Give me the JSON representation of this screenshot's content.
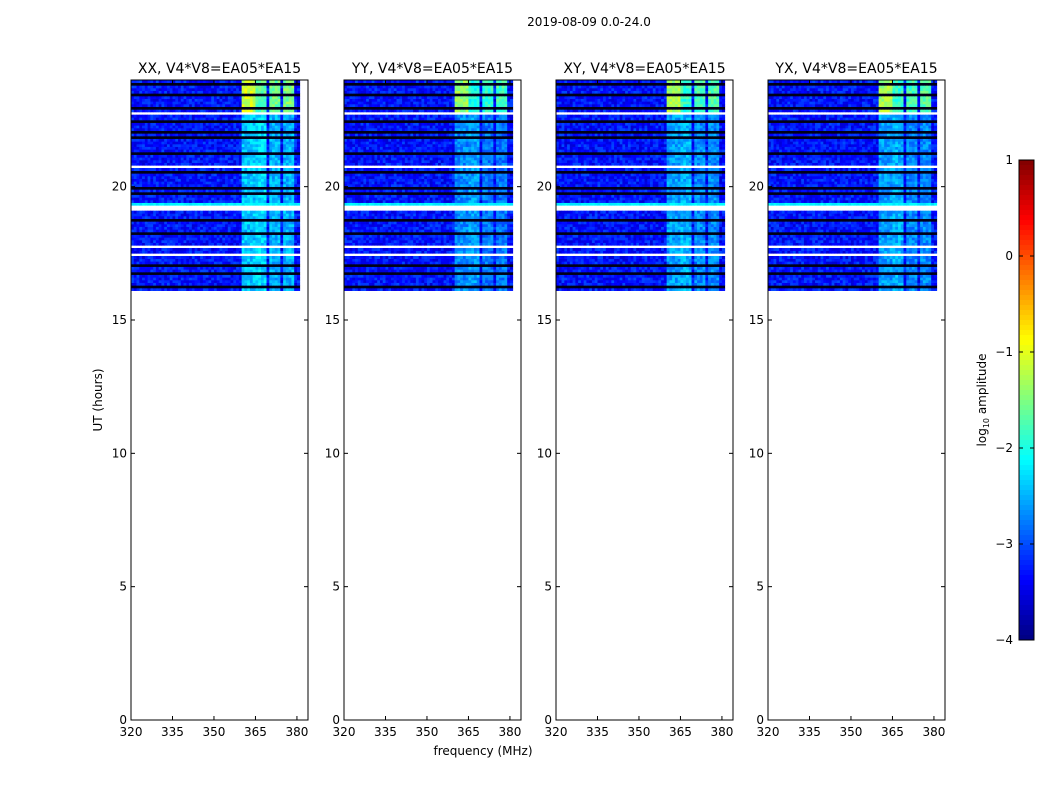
{
  "chart_data": {
    "type": "heatmap",
    "title": "2019-08-09 0.0-24.0",
    "xlabel": "frequency (MHz)",
    "ylabel": "UT (hours)",
    "xlim": [
      320,
      384
    ],
    "ylim": [
      0,
      24
    ],
    "xticks": [
      320,
      335,
      350,
      365,
      380
    ],
    "yticks": [
      0,
      5,
      10,
      15,
      20
    ],
    "data_time_range": [
      16,
      24
    ],
    "colormap": "jet",
    "colorbar": {
      "label_main": "log",
      "label_sub": "10",
      "label_rest": " amplitude",
      "range": [
        -4,
        1
      ],
      "ticks": [
        1,
        0,
        -1,
        -2,
        -3,
        -4
      ],
      "tick_labels": [
        "1",
        "0",
        "−1",
        "−2",
        "−3",
        "−4"
      ]
    },
    "background_level": -3.3,
    "bright_bands": [
      {
        "fmin": 360,
        "fmax": 364.5,
        "upper_level": -1.1,
        "lower_level": -2.4
      },
      {
        "fmin": 365,
        "fmax": 369,
        "upper_level": -1.7,
        "lower_level": -2.3
      },
      {
        "fmin": 370,
        "fmax": 374,
        "upper_level": -1.6,
        "lower_level": -2.5
      },
      {
        "fmin": 375,
        "fmax": 379,
        "upper_level": -1.5,
        "lower_level": -2.5
      }
    ],
    "upper_segment_start_hour": 22.8,
    "flagged_time_ranges": [
      [
        22.75,
        22.85
      ],
      [
        20.7,
        20.85
      ],
      [
        19.1,
        19.3
      ],
      [
        17.7,
        17.85
      ],
      [
        17.4,
        17.5
      ],
      [
        17.2,
        17.25
      ],
      [
        16.05,
        16.15
      ]
    ],
    "cyan_time_ranges": [
      [
        19.32,
        19.45
      ],
      [
        15.95,
        16.05
      ]
    ],
    "dark_lines": [
      23.9,
      23.5,
      23.0,
      22.45,
      22.1,
      21.85,
      21.3,
      20.55,
      20.0,
      19.8,
      18.75,
      18.3,
      17.05,
      16.75,
      16.3
    ],
    "panels": [
      {
        "title": "XX, V4*V8=EA05*EA15",
        "band_gain": 0.0
      },
      {
        "title": "YY, V4*V8=EA05*EA15",
        "band_gain": -0.3
      },
      {
        "title": "XY, V4*V8=EA05*EA15",
        "band_gain": -0.2
      },
      {
        "title": "YX, V4*V8=EA05*EA15",
        "band_gain": -0.2
      }
    ]
  }
}
